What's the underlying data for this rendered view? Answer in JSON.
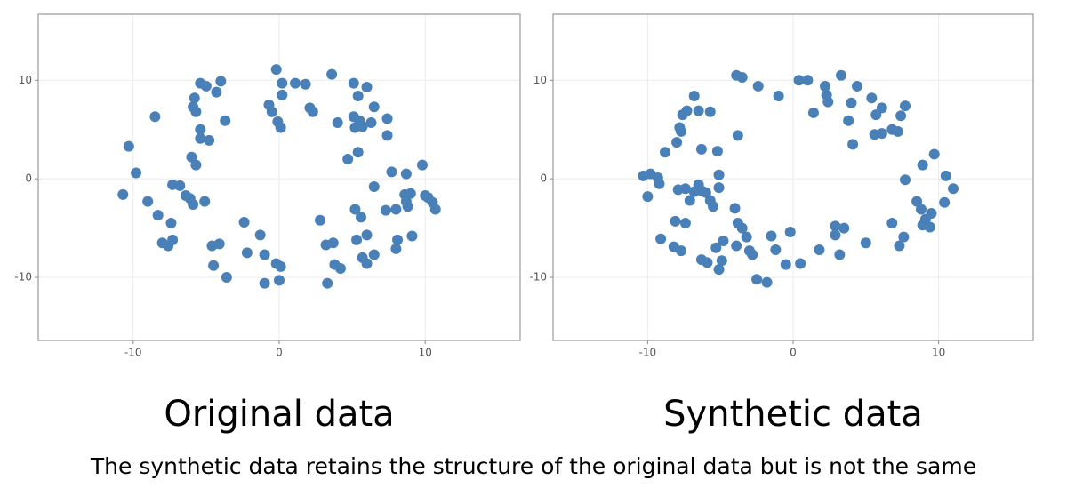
{
  "chart_data": [
    {
      "type": "scatter",
      "title": "Original data",
      "color": "#4a80b8",
      "xlim": [
        -16.5,
        16.5
      ],
      "ylim": [
        -16.4,
        16.7
      ],
      "xticks": [
        -10,
        0,
        10
      ],
      "yticks": [
        -10,
        0,
        10
      ],
      "grid": true,
      "x": [
        -10.7,
        -10.3,
        -9.8,
        -9.0,
        -8.5,
        -8.3,
        -8.0,
        -7.6,
        -7.3,
        -7.4,
        -7.3,
        -6.8,
        -6.4,
        -6.1,
        -5.9,
        -5.9,
        -5.8,
        -5.7,
        -6.0,
        -5.7,
        -5.4,
        -5.4,
        -5.4,
        -5.0,
        -4.8,
        -5.1,
        -4.6,
        -4.1,
        -4.5,
        -3.6,
        -4.3,
        -4.0,
        -3.7,
        -2.4,
        -2.2,
        -1.3,
        -1.0,
        -1.0,
        -0.2,
        0.1,
        0.0,
        -0.7,
        -0.5,
        -0.1,
        0.1,
        -0.2,
        0.2,
        0.2,
        1.1,
        1.8,
        2.1,
        2.3,
        2.8,
        3.2,
        3.7,
        3.3,
        3.8,
        4.2,
        3.6,
        4.0,
        4.7,
        5.1,
        5.4,
        6.0,
        5.1,
        5.5,
        5.2,
        5.7,
        6.3,
        6.5,
        7.4,
        7.4,
        5.4,
        5.2,
        5.6,
        5.3,
        6.0,
        5.7,
        6.0,
        6.5,
        6.5,
        7.3,
        8.0,
        7.7,
        8.0,
        8.1,
        8.7,
        8.7,
        8.6,
        9.0,
        8.8,
        9.1,
        9.8,
        10.0,
        10.2,
        10.5,
        10.7
      ],
      "values": [
        -1.6,
        3.3,
        0.6,
        -2.3,
        6.3,
        -3.7,
        -6.5,
        -6.8,
        -6.2,
        -4.5,
        -0.6,
        -0.7,
        -1.7,
        -2.0,
        -2.6,
        7.3,
        8.2,
        6.8,
        2.2,
        1.4,
        4.1,
        5.0,
        9.7,
        9.4,
        3.9,
        -2.3,
        -6.8,
        -6.6,
        -8.8,
        -10.0,
        8.8,
        9.9,
        5.9,
        -4.4,
        -7.5,
        -5.7,
        -7.7,
        -10.6,
        -8.6,
        -8.9,
        -10.3,
        7.5,
        6.8,
        5.8,
        5.2,
        11.1,
        9.7,
        8.5,
        9.7,
        9.6,
        7.2,
        6.8,
        -4.2,
        -6.7,
        -6.5,
        -10.6,
        -8.7,
        -9.1,
        10.6,
        5.7,
        2.0,
        9.7,
        8.4,
        9.3,
        6.3,
        5.9,
        5.2,
        5.3,
        5.7,
        7.3,
        6.1,
        4.4,
        2.7,
        -3.1,
        -3.9,
        -6.2,
        -5.7,
        -8.0,
        -8.6,
        -7.7,
        -0.8,
        -3.2,
        -3.1,
        0.7,
        -7.1,
        -6.2,
        0.5,
        -2.3,
        -1.6,
        -1.5,
        -2.8,
        -5.8,
        1.4,
        -1.7,
        -1.9,
        -2.4,
        -3.1
      ]
    },
    {
      "type": "scatter",
      "title": "Synthetic data",
      "color": "#4a80b8",
      "xlim": [
        -16.5,
        16.5
      ],
      "ylim": [
        -16.4,
        16.7
      ],
      "xticks": [
        -10,
        0,
        10
      ],
      "yticks": [
        -10,
        0,
        10
      ],
      "grid": true,
      "x": [
        -10.3,
        -9.8,
        -10.0,
        -9.2,
        -9.3,
        -8.8,
        -9.1,
        -8.2,
        -7.7,
        -8.0,
        -7.8,
        -7.7,
        -7.6,
        -7.3,
        -6.8,
        -6.5,
        -5.7,
        -6.3,
        -5.2,
        -7.9,
        -7.4,
        -6.8,
        -6.5,
        -6.3,
        -6.0,
        -5.7,
        -5.5,
        -7.1,
        -5.1,
        -5.1,
        -8.1,
        -7.4,
        -6.3,
        -5.9,
        -5.1,
        -4.9,
        -5.3,
        -4.8,
        -3.9,
        -3.5,
        -3.8,
        -4.0,
        -3.8,
        -3.5,
        -3.9,
        -3.2,
        -2.8,
        -3.0,
        -2.4,
        -2.5,
        -1.8,
        -1.5,
        -1.0,
        -1.2,
        -0.5,
        -0.2,
        0.4,
        1.0,
        0.5,
        1.4,
        2.3,
        2.2,
        2.4,
        1.8,
        2.9,
        2.9,
        3.5,
        3.2,
        3.3,
        3.8,
        4.1,
        4.0,
        4.4,
        5.0,
        5.4,
        5.6,
        6.1,
        5.7,
        6.1,
        6.8,
        7.2,
        7.4,
        7.7,
        7.7,
        6.8,
        7.3,
        7.6,
        8.5,
        8.8,
        8.9,
        9.1,
        9.4,
        9.5,
        8.9,
        9.7,
        10.4,
        10.5,
        11.0
      ],
      "values": [
        0.3,
        0.5,
        -1.8,
        -0.5,
        0.1,
        2.7,
        -6.1,
        -6.9,
        -7.3,
        3.7,
        5.2,
        4.8,
        6.5,
        6.9,
        8.4,
        6.9,
        6.8,
        3.0,
        2.8,
        -1.1,
        -1.0,
        -1.3,
        -0.6,
        -1.2,
        -1.4,
        -2.2,
        -2.8,
        -2.2,
        0.4,
        -0.9,
        -4.3,
        -4.5,
        -8.2,
        -8.5,
        -9.2,
        -8.3,
        -7.0,
        -6.3,
        10.5,
        10.3,
        4.4,
        -3.0,
        -4.5,
        -5.0,
        -6.8,
        -5.9,
        -7.7,
        -7.3,
        9.4,
        -10.2,
        -10.5,
        -5.8,
        8.4,
        -7.2,
        -8.7,
        -5.4,
        10.0,
        10.0,
        -8.6,
        6.7,
        8.5,
        9.4,
        7.8,
        -7.2,
        -5.7,
        -4.8,
        -5.0,
        -7.7,
        10.5,
        5.9,
        3.5,
        7.7,
        9.4,
        -6.5,
        8.2,
        4.5,
        4.6,
        6.5,
        7.2,
        5.0,
        4.8,
        6.4,
        7.4,
        -0.1,
        -4.5,
        -6.8,
        -5.9,
        -2.3,
        -3.1,
        -4.7,
        -4.1,
        -4.9,
        -3.5,
        1.4,
        2.5,
        -2.4,
        0.3,
        -1.0
      ]
    }
  ],
  "caption": "The synthetic data retains the structure of the original data but is not the same"
}
